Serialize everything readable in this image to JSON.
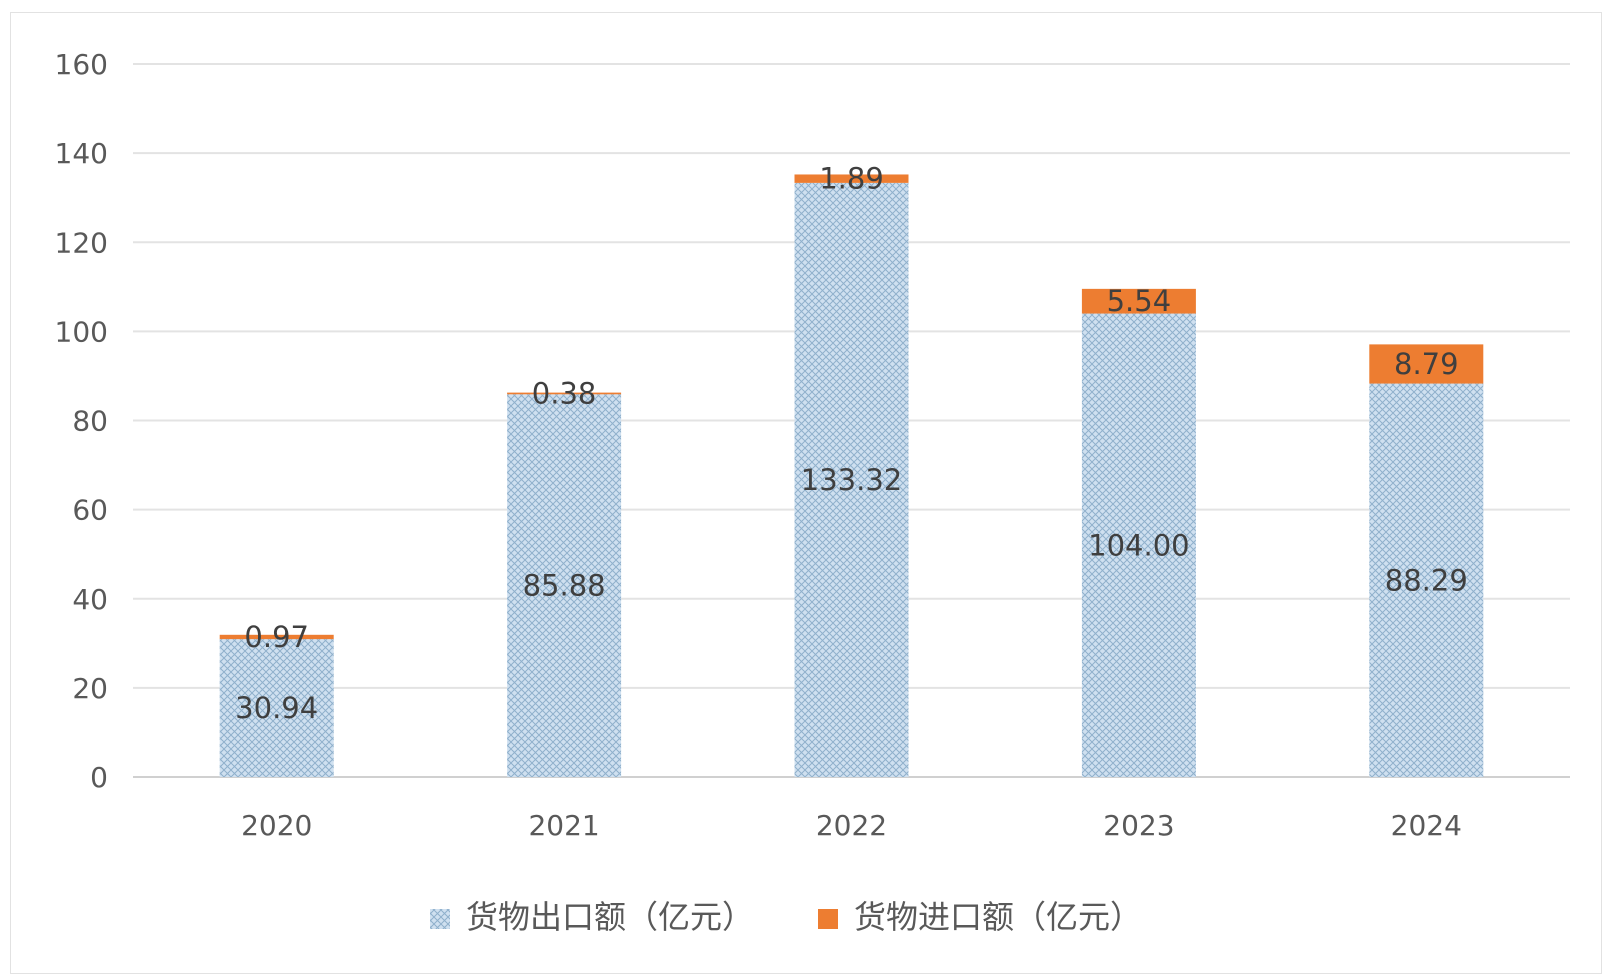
{
  "chart_data": {
    "type": "bar",
    "stacked": true,
    "categories": [
      "2020",
      "2021",
      "2022",
      "2023",
      "2024"
    ],
    "series": [
      {
        "name": "货物出口额（亿元）",
        "values": [
          30.94,
          85.88,
          133.32,
          104.0,
          88.29
        ],
        "labels": [
          "30.94",
          "85.88",
          "133.32",
          "104.00",
          "88.29"
        ],
        "color": "#bdd7ee",
        "pattern": "crosshatch"
      },
      {
        "name": "货物进口额（亿元）",
        "values": [
          0.97,
          0.38,
          1.89,
          5.54,
          8.79
        ],
        "labels": [
          "0.97",
          "0.38",
          "1.89",
          "5.54",
          "8.79"
        ],
        "color": "#ed7d31"
      }
    ],
    "title": "",
    "xlabel": "",
    "ylabel": "",
    "ylim": [
      0,
      160
    ],
    "yticks": [
      "0",
      "20",
      "40",
      "60",
      "80",
      "100",
      "120",
      "140",
      "160"
    ],
    "grid": true,
    "legend_position": "bottom"
  }
}
